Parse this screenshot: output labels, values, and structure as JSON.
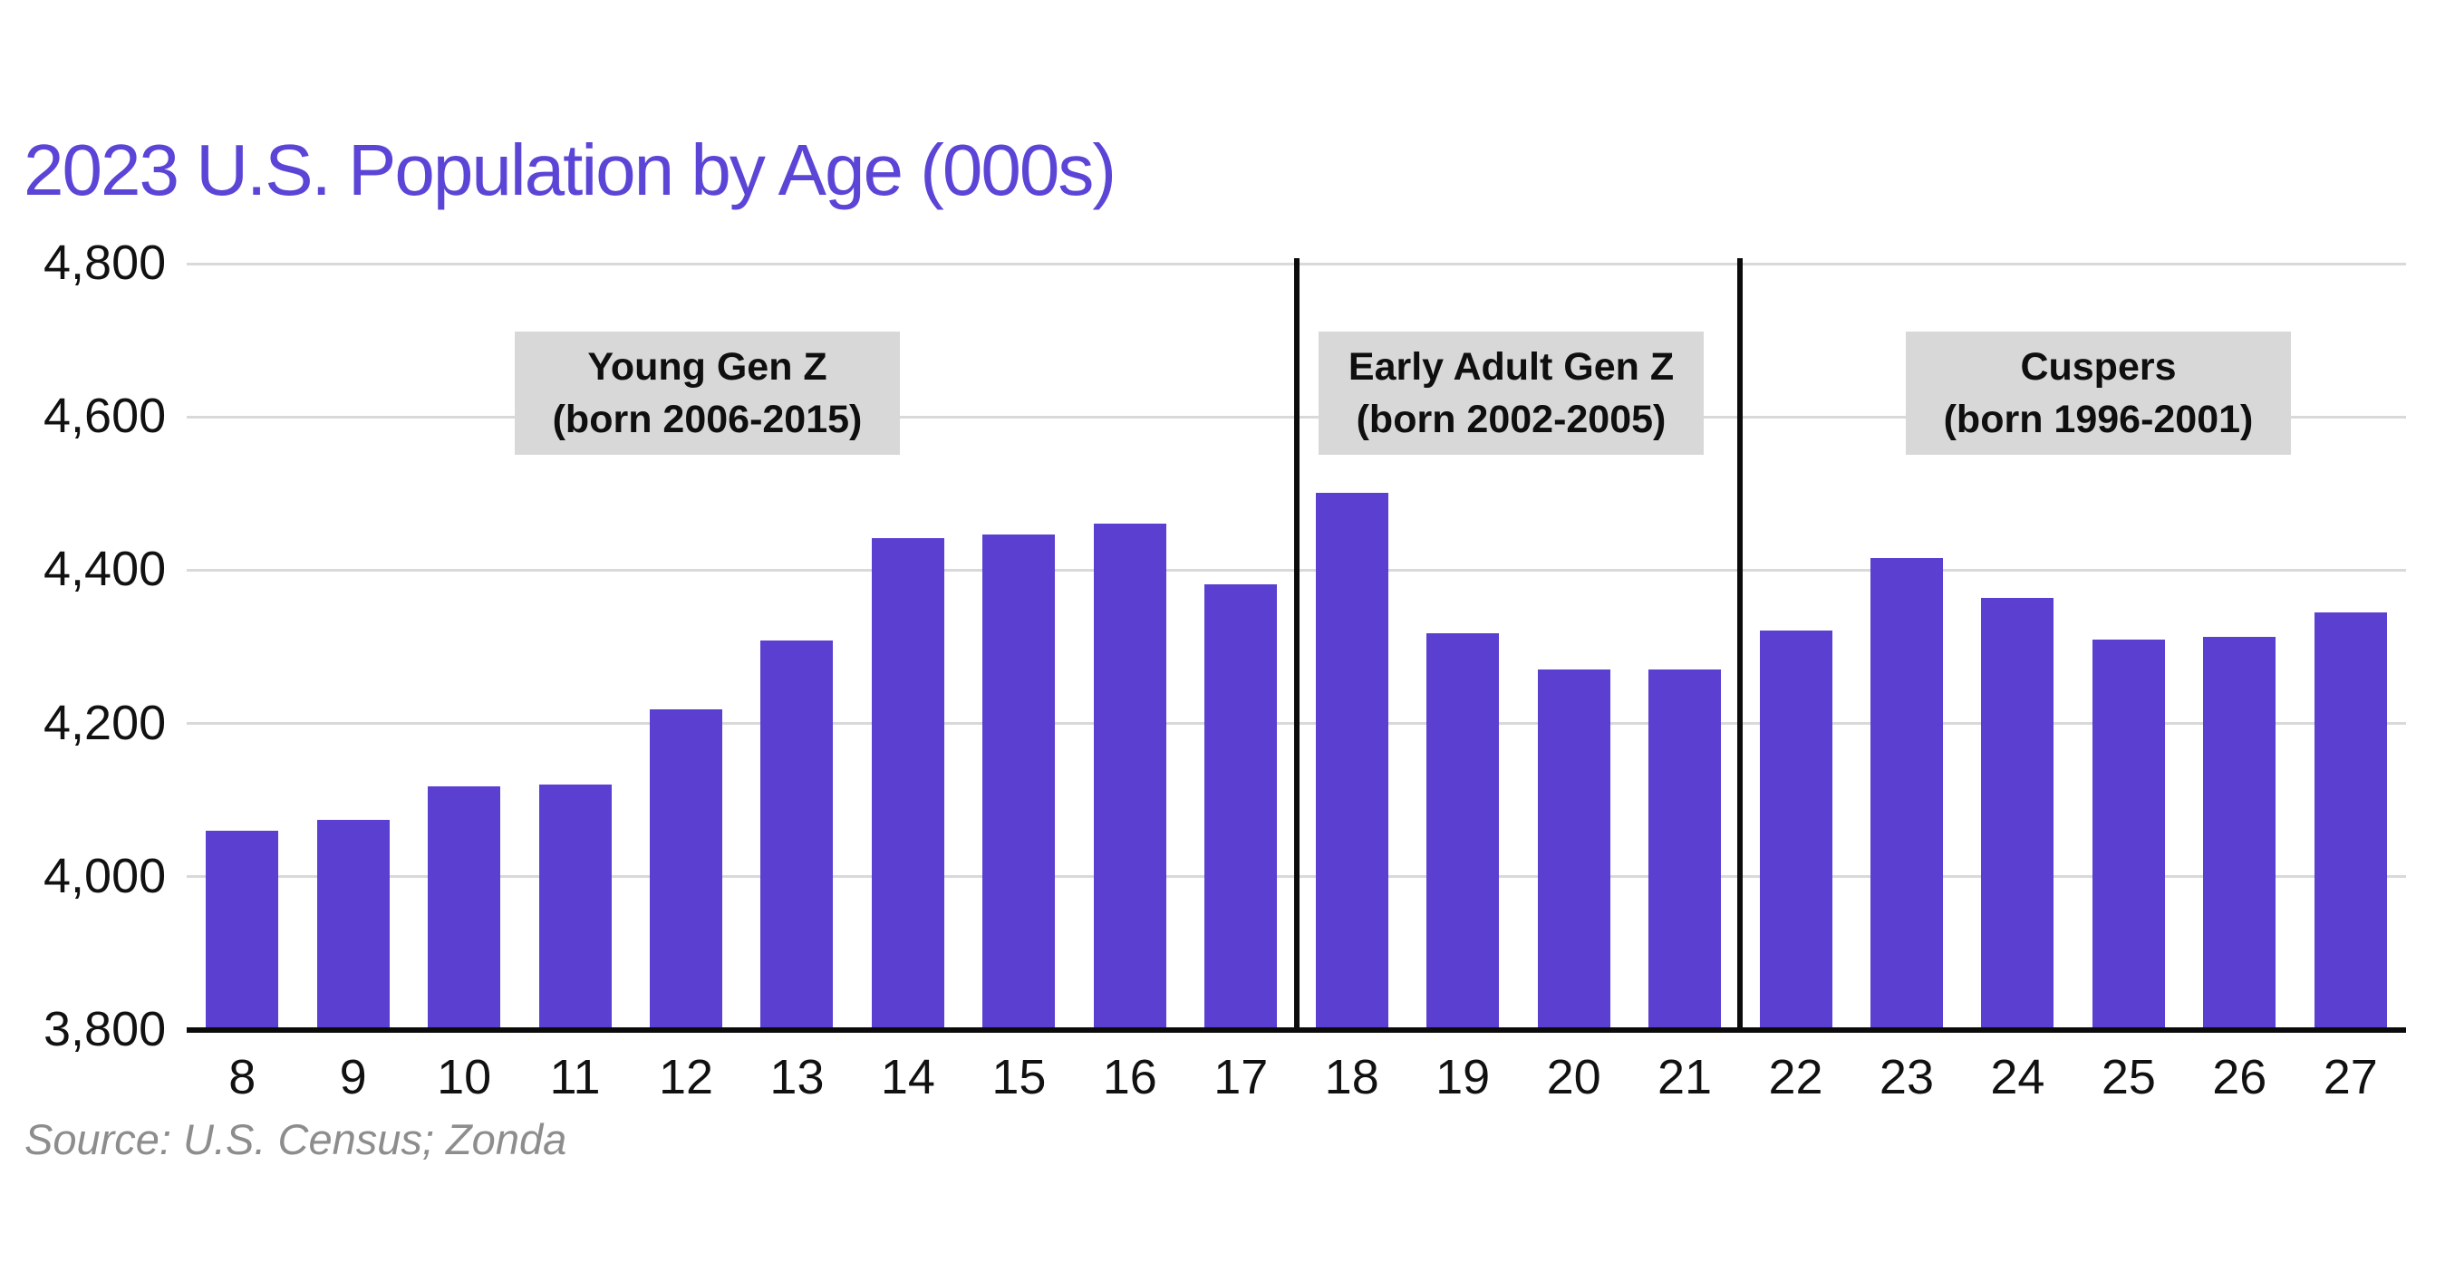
{
  "chart_data": {
    "type": "bar",
    "title": "2023 U.S. Population by Age (000s)",
    "source": "Source: U.S. Census; Zonda",
    "xlabel": "",
    "ylabel": "",
    "categories": [
      "8",
      "9",
      "10",
      "11",
      "12",
      "13",
      "14",
      "15",
      "16",
      "17",
      "18",
      "19",
      "20",
      "21",
      "22",
      "23",
      "24",
      "25",
      "26",
      "27"
    ],
    "values": [
      4060,
      4074,
      4118,
      4120,
      4218,
      4308,
      4442,
      4446,
      4461,
      4382,
      4501,
      4318,
      4271,
      4270,
      4321,
      4416,
      4364,
      4309,
      4313,
      4345
    ],
    "ylim": [
      3800,
      4800
    ],
    "ytick_step": 200,
    "ytick_labels": [
      "4,800",
      "4,600",
      "4,400",
      "4,200",
      "4,000",
      "3,800"
    ],
    "grid": true,
    "legend": "none",
    "bar_color": "#5a3fd0",
    "title_color": "#5b45d7",
    "gridline_color": "#d9d9d9",
    "annotation_bg_color": "#d8d8d8",
    "axis_text_color": "#111111",
    "source_text_color": "#8d8d8d",
    "dividers_between": [
      [
        "17",
        "18"
      ],
      [
        "21",
        "22"
      ]
    ],
    "annotations": [
      {
        "line1": "Young Gen Z",
        "line2": "(born 2006-2015)"
      },
      {
        "line1": "Early Adult Gen Z",
        "line2": "(born 2002-2005)"
      },
      {
        "line1": "Cuspers",
        "line2": "(born 1996-2001)"
      }
    ]
  }
}
